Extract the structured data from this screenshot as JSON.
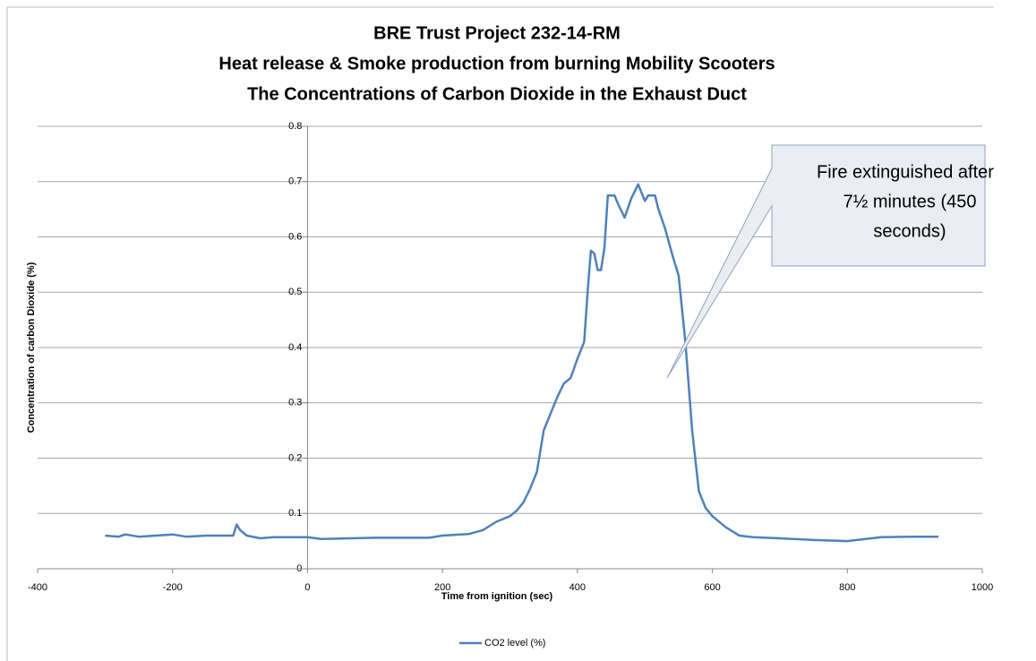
{
  "chart_data": {
    "type": "line",
    "title": [
      "BRE Trust Project 232-14-RM",
      "Heat release & Smoke production from burning Mobility Scooters",
      "The Concentrations of Carbon Dioxide in the Exhaust Duct"
    ],
    "x_label": "Time from ignition (sec)",
    "y_label": "Concentration of carbon Dioxide (%)",
    "annotation": [
      "Fire extinguished after",
      "7½ minutes (450",
      "seconds)"
    ],
    "x": [
      -300,
      -280,
      -270,
      -250,
      -200,
      -180,
      -150,
      -120,
      -110,
      -105,
      -100,
      -90,
      -70,
      -50,
      0,
      20,
      100,
      180,
      200,
      240,
      260,
      280,
      300,
      310,
      320,
      330,
      340,
      350,
      360,
      370,
      380,
      390,
      400,
      410,
      415,
      420,
      425,
      430,
      435,
      440,
      445,
      455,
      460,
      470,
      480,
      490,
      500,
      505,
      515,
      520,
      530,
      540,
      550,
      560,
      570,
      580,
      590,
      600,
      620,
      640,
      660,
      700,
      750,
      800,
      850,
      900,
      935
    ],
    "series": [
      {
        "name": "CO2 level (%)",
        "color": "#4f81bd",
        "values": [
          0.06,
          0.058,
          0.062,
          0.058,
          0.062,
          0.058,
          0.06,
          0.06,
          0.06,
          0.08,
          0.07,
          0.06,
          0.055,
          0.057,
          0.057,
          0.054,
          0.056,
          0.056,
          0.06,
          0.063,
          0.07,
          0.085,
          0.095,
          0.105,
          0.12,
          0.145,
          0.175,
          0.25,
          0.28,
          0.31,
          0.335,
          0.345,
          0.38,
          0.41,
          0.5,
          0.575,
          0.57,
          0.54,
          0.54,
          0.58,
          0.675,
          0.675,
          0.66,
          0.635,
          0.67,
          0.695,
          0.665,
          0.675,
          0.675,
          0.65,
          0.615,
          0.57,
          0.53,
          0.41,
          0.25,
          0.14,
          0.11,
          0.095,
          0.075,
          0.06,
          0.057,
          0.055,
          0.052,
          0.05,
          0.057,
          0.058,
          0.058
        ]
      }
    ],
    "xlim": [
      -400,
      1000
    ],
    "xticks": [
      -400,
      -200,
      0,
      200,
      400,
      600,
      800,
      1000
    ],
    "ylim": [
      0,
      0.8
    ],
    "yticks": [
      0,
      0.1,
      0.2,
      0.3,
      0.4,
      0.5,
      0.6,
      0.7,
      0.8
    ],
    "grid": true,
    "legend": "bottom"
  }
}
